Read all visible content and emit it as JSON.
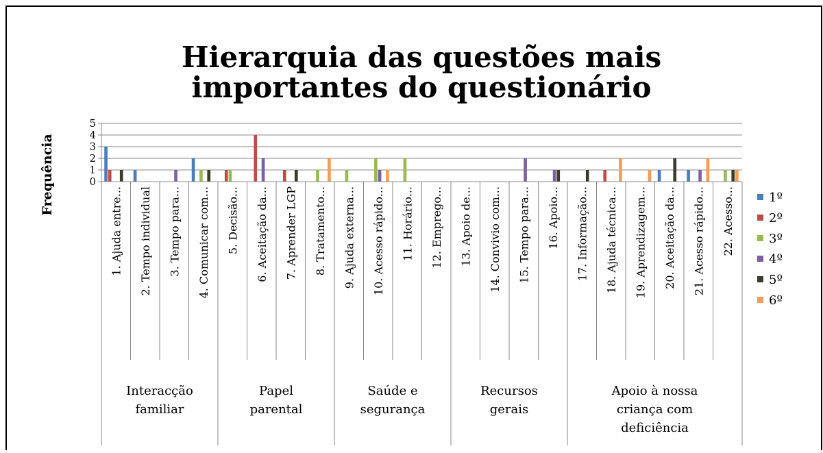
{
  "chart_data": {
    "type": "bar",
    "title": [
      "Hierarquia das questões mais",
      "importantes do questionário"
    ],
    "y_label": "Frequência",
    "categories": [
      "1. Ajuda entre...",
      "2. Tempo individual",
      "3. Tempo para...",
      "4. Comunicar com...",
      "5. Decisão...",
      "6. Aceitação da...",
      "7. Aprender LGP",
      "8. Tratamento...",
      "9. Ajuda externa...",
      "10. Acesso rápido...",
      "11. Horário...",
      "12. Emprego...",
      "13. Apoio de...",
      "14. Convivio com...",
      "15. Tempo para...",
      "16. Apoio...",
      "17. Informação...",
      "18. Ajuda técnica...",
      "19. Aprendizagem...",
      "20. Aceitação da...",
      "21. Acesso rápido...",
      "22. Acesso..."
    ],
    "groups": [
      {
        "label": [
          "Interacção",
          "familiar"
        ],
        "count": 4
      },
      {
        "label": [
          "Papel",
          "parental"
        ],
        "count": 4
      },
      {
        "label": [
          "Saúde e",
          "segurança"
        ],
        "count": 4
      },
      {
        "label": [
          "Recursos",
          "gerais"
        ],
        "count": 4
      },
      {
        "label": [
          "Apoio à nossa",
          "criança com",
          "deficiência"
        ],
        "count": 6
      }
    ],
    "series": [
      {
        "name": "1º",
        "color": "#4a7ebb",
        "values": [
          3,
          1,
          0,
          2,
          0,
          0,
          0,
          0,
          0,
          0,
          0,
          0,
          0,
          0,
          0,
          0,
          0,
          0,
          0,
          1,
          1,
          0
        ]
      },
      {
        "name": "2º",
        "color": "#be4b48",
        "values": [
          1,
          0,
          0,
          0,
          1,
          4,
          1,
          0,
          0,
          0,
          0,
          0,
          0,
          0,
          0,
          0,
          0,
          1,
          0,
          0,
          0,
          0
        ]
      },
      {
        "name": "3º",
        "color": "#98b954",
        "values": [
          0,
          0,
          0,
          1,
          1,
          0,
          0,
          1,
          1,
          2,
          2,
          0,
          0,
          0,
          0,
          0,
          0,
          0,
          0,
          0,
          0,
          1
        ]
      },
      {
        "name": "4º",
        "color": "#7d60a0",
        "values": [
          0,
          0,
          1,
          0,
          0,
          2,
          0,
          0,
          0,
          1,
          0,
          0,
          0,
          0,
          2,
          1,
          0,
          0,
          0,
          0,
          1,
          0
        ]
      },
      {
        "name": "5º",
        "color": "#3b3a2b",
        "values": [
          1,
          0,
          0,
          1,
          0,
          0,
          1,
          0,
          0,
          0,
          0,
          0,
          0,
          0,
          0,
          1,
          1,
          0,
          0,
          2,
          0,
          1
        ]
      },
      {
        "name": "6º",
        "color": "#f59d56",
        "values": [
          0,
          0,
          0,
          0,
          0,
          0,
          0,
          2,
          0,
          1,
          0,
          0,
          0,
          0,
          0,
          0,
          0,
          2,
          1,
          0,
          2,
          1
        ]
      }
    ],
    "ylim": [
      0,
      5
    ],
    "yticks": [
      0,
      1,
      2,
      3,
      4,
      5
    ],
    "grid": true,
    "legend": "right"
  }
}
